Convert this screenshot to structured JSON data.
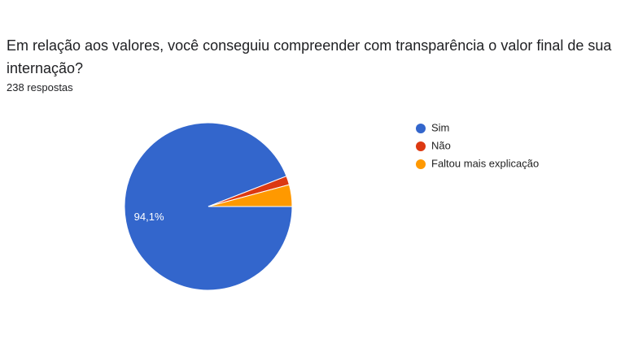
{
  "chart_data": {
    "type": "pie",
    "title": "Em relação aos valores, você conseguiu compreender com transparência o valor final de sua internação?",
    "subtitle": "238 respostas",
    "categories": [
      "Sim",
      "Não",
      "Faltou mais explicação"
    ],
    "values": [
      94.1,
      1.7,
      4.2
    ],
    "value_labels": [
      "94,1%",
      null,
      null
    ],
    "colors": [
      "#3366cc",
      "#dc3912",
      "#ff9900"
    ],
    "legend": "right"
  }
}
